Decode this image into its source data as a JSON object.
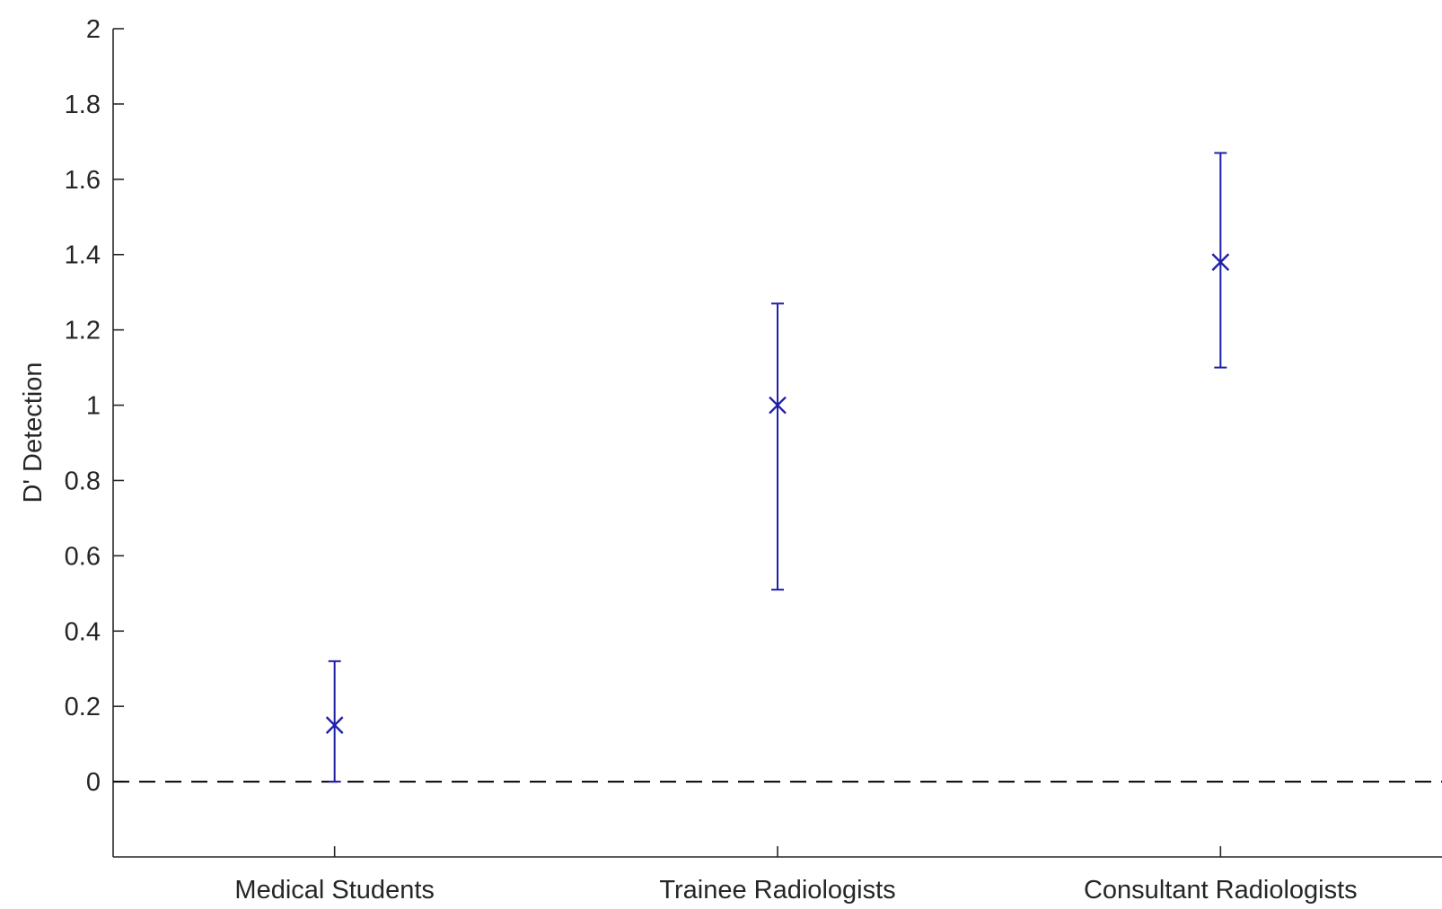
{
  "chart_data": {
    "type": "scatter",
    "title": "",
    "xlabel": "",
    "ylabel": "D' Detection",
    "ylim": [
      -0.2,
      2
    ],
    "yticks": [
      "0",
      "0.2",
      "0.4",
      "0.6",
      "0.8",
      "1",
      "1.2",
      "1.4",
      "1.6",
      "1.8",
      "2"
    ],
    "categories": [
      "Medical Students",
      "Trainee Radiologists",
      "Consultant Radiologists"
    ],
    "series": [
      {
        "values": [
          0.15,
          1.0,
          1.38
        ],
        "lower": [
          0.0,
          0.51,
          1.1
        ],
        "upper": [
          0.32,
          1.27,
          1.67
        ],
        "marker": "x",
        "color": "#1f1fa8"
      }
    ],
    "reference_line": {
      "y": 0,
      "style": "dashed",
      "color": "#000000"
    },
    "grid": false,
    "legend": "none"
  }
}
